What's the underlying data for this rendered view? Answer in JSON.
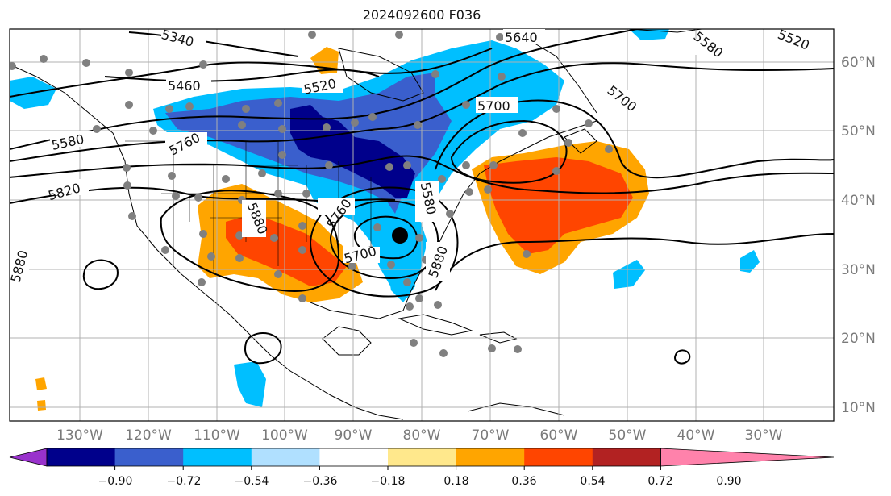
{
  "title": "2024092600 F036",
  "longitude_labels": [
    "130°W",
    "120°W",
    "110°W",
    "100°W",
    "90°W",
    "80°W",
    "70°W",
    "60°W",
    "50°W",
    "40°W",
    "30°W"
  ],
  "latitude_labels": [
    "10°N",
    "20°N",
    "30°N",
    "40°N",
    "50°N",
    "60°N"
  ],
  "colorbar": {
    "tick_labels": [
      "−0.90",
      "−0.72",
      "−0.54",
      "−0.36",
      "−0.18",
      "0.18",
      "0.36",
      "0.54",
      "0.72",
      "0.90"
    ],
    "colors": [
      "#9932cc",
      "#00008b",
      "#3a5fcd",
      "#00bfff",
      "#b0e0ff",
      "#ffffff",
      "#ffe88c",
      "#ffa500",
      "#ff4500",
      "#b22222",
      "#ff82ab"
    ]
  },
  "contour_labels": [
    "5340",
    "5460",
    "5520",
    "5580",
    "5580",
    "5640",
    "5700",
    "5700",
    "5760",
    "5760",
    "5820",
    "5880",
    "5880",
    "5880",
    "5520",
    "5700",
    "5580"
  ],
  "markers": {
    "station_color": "#808080",
    "center_color": "#000000"
  }
}
